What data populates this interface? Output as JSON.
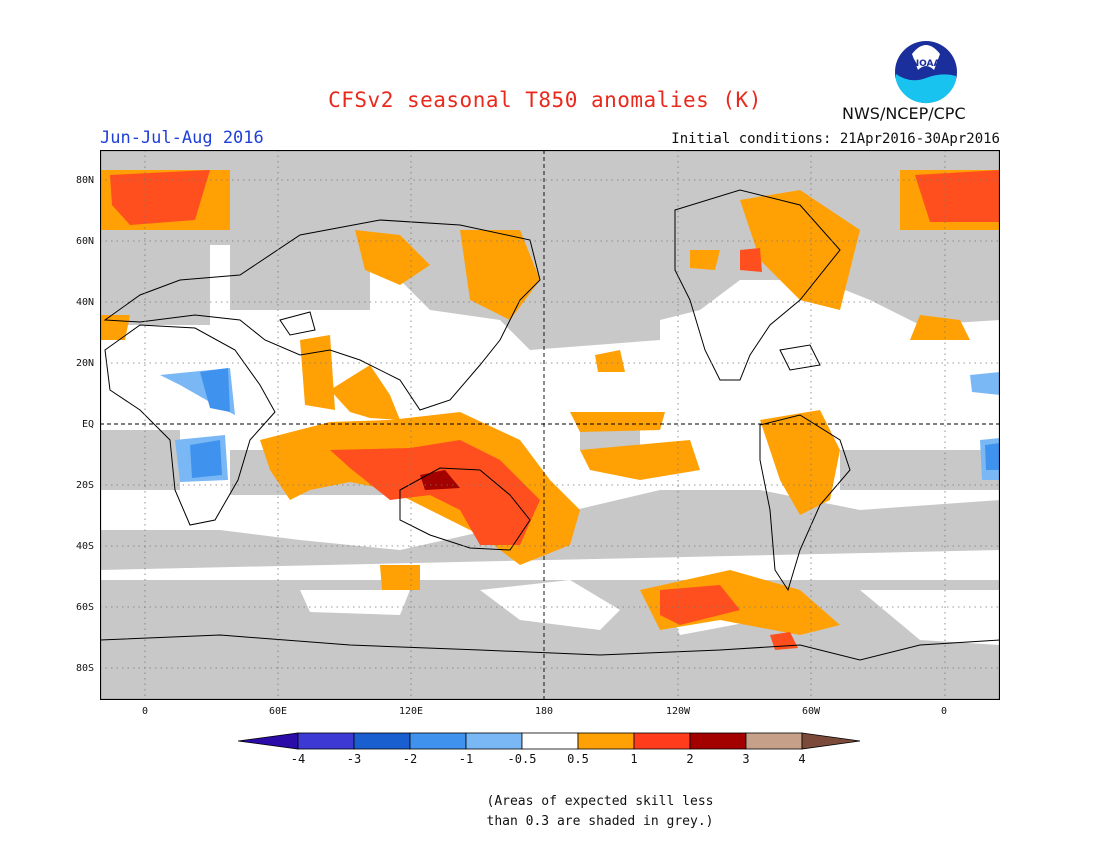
{
  "header": {
    "title": "CFSv2 seasonal T850 anomalies (K)",
    "season": "Jun-Jul-Aug 2016",
    "initial_conditions": "Initial conditions: 21Apr2016-30Apr2016",
    "agency": "NWS/NCEP/CPC",
    "logo_text": "NOAA"
  },
  "map": {
    "lat_labels": [
      "80N",
      "60N",
      "40N",
      "20N",
      "EQ",
      "20S",
      "40S",
      "60S",
      "80S"
    ],
    "lon_labels": [
      "0",
      "60E",
      "120E",
      "180",
      "120W",
      "60W",
      "0"
    ],
    "colors": {
      "grey": "#c8c8c8",
      "o05": "#ffa105",
      "o1": "#ff4f1e",
      "o2": "#a30000",
      "b05": "#7ab8f5",
      "b1": "#3f93ee"
    }
  },
  "colorbar": {
    "labels": [
      "-4",
      "-3",
      "-2",
      "-1",
      "-0.5",
      "0.5",
      "1",
      "2",
      "3",
      "4"
    ],
    "colors": [
      "#2b0ca8",
      "#3d39d4",
      "#1a5fd0",
      "#3f93ee",
      "#7ab8f5",
      "#ffffff",
      "#ffa105",
      "#ff3c1c",
      "#a30000",
      "#c7a08a",
      "#7b4a3a"
    ]
  },
  "note": {
    "line1": "(Areas of expected skill less",
    "line2": "than 0.3 are shaded in grey.)"
  }
}
